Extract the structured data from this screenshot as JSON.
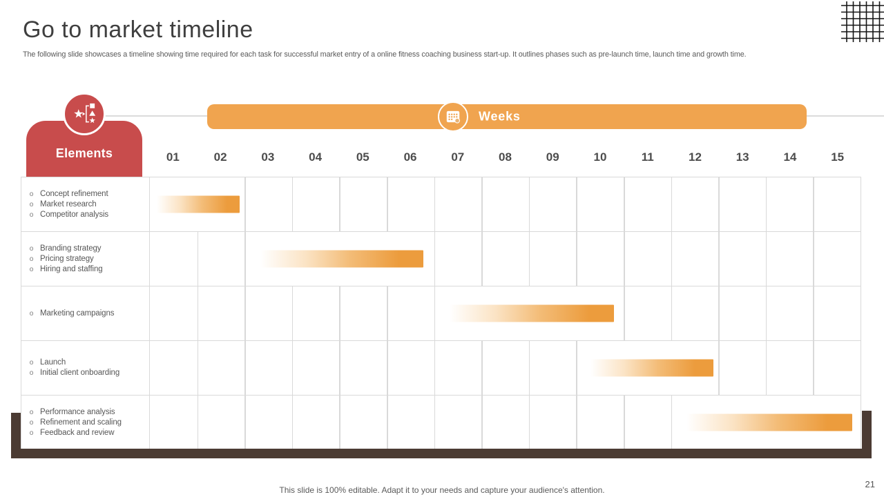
{
  "slide": {
    "title": "Go to market timeline",
    "subtitle": "The following slide showcases a timeline showing time required for each task for successful market entry of a online fitness coaching business start-up. It outlines phases such as pre-launch time, launch time and growth time.",
    "footer": "This slide is 100% editable. Adapt it to your needs and capture your audience's attention.",
    "page_number": "21"
  },
  "timeline": {
    "elements_label": "Elements",
    "weeks_label": "Weeks"
  },
  "icons": {
    "elements_icon": "star-and-flowchart-shapes-icon",
    "weeks_icon": "calendar-icon",
    "decoration": "grid-pattern"
  },
  "colors": {
    "accent_red": "#C84C4C",
    "accent_orange": "#F0A44F",
    "bar_orange": "#EC9C3D",
    "grid_line": "#D9D9D9",
    "frame_brown": "#4B3B33",
    "title_text": "#3F3F3F",
    "body_text": "#595959"
  },
  "chart_data": {
    "type": "bar",
    "variant": "gantt",
    "title": "Go to market timeline",
    "x_axis": {
      "label": "Weeks",
      "ticks": [
        "01",
        "02",
        "03",
        "04",
        "05",
        "06",
        "07",
        "08",
        "09",
        "10",
        "11",
        "12",
        "13",
        "14",
        "15"
      ],
      "range_cols": [
        0,
        15
      ]
    },
    "row_header": "Elements",
    "bar_gradient": [
      "#FFFFFF",
      "#EC9C3D"
    ],
    "rows": [
      {
        "tasks": [
          "Concept refinement",
          "Market research",
          "Competitor analysis"
        ],
        "start_col": 0.15,
        "end_col": 1.89
      },
      {
        "tasks": [
          "Branding strategy",
          "Pricing strategy",
          "Hiring and staffing"
        ],
        "start_col": 2.33,
        "end_col": 5.77
      },
      {
        "tasks": [
          "Marketing campaigns"
        ],
        "start_col": 6.33,
        "end_col": 9.8
      },
      {
        "tasks": [
          "Launch",
          "Initial client onboarding"
        ],
        "start_col": 9.3,
        "end_col": 11.89
      },
      {
        "tasks": [
          "Performance analysis",
          "Refinement and scaling",
          "Feedback and review"
        ],
        "start_col": 11.33,
        "end_col": 14.82
      }
    ]
  }
}
